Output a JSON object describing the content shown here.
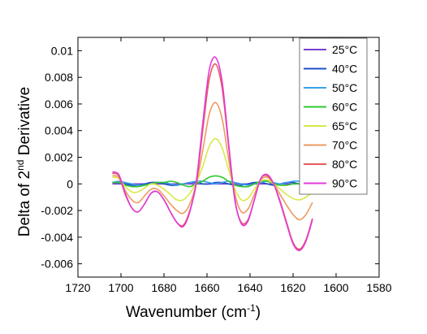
{
  "chart_data": {
    "type": "line",
    "title": "",
    "xlabel_main": "Wavenumber (cm",
    "xlabel_sup": "-1",
    "xlabel_end": ")",
    "ylabel_main": "Delta of 2",
    "ylabel_sup": "nd",
    "ylabel_end": " Derivative",
    "xlim": [
      1720,
      1580
    ],
    "ylim": [
      -0.007,
      0.011
    ],
    "x_ticks": [
      1720,
      1700,
      1680,
      1660,
      1640,
      1620,
      1600,
      1580
    ],
    "y_ticks": [
      0.01,
      0.008,
      0.006,
      0.004,
      0.002,
      0,
      -0.002,
      -0.004,
      -0.006
    ],
    "y_tick_labels": [
      "0.01",
      "0.008",
      "0.006",
      "0.004",
      "0.002",
      "0",
      "-0.002",
      "-0.004",
      "-0.006"
    ],
    "legend_position": "top-right",
    "x": [
      1704,
      1701,
      1698,
      1695,
      1692,
      1689,
      1686,
      1683,
      1680,
      1677,
      1674,
      1671,
      1668,
      1665,
      1662,
      1659,
      1656,
      1653,
      1650,
      1647,
      1644,
      1641,
      1638,
      1635,
      1632,
      1629,
      1626,
      1623,
      1620,
      1617,
      1614,
      1611
    ],
    "series": [
      {
        "name": "25",
        "color": "#7b3fd0",
        "values": [
          0.0,
          0.0,
          0.0,
          0.0,
          0.0,
          0.0,
          0.0,
          0.0,
          0.0,
          0.0,
          0.0,
          0.0,
          0.0,
          0.0,
          0.0,
          0.0,
          0.0,
          0.0,
          0.0,
          0.0,
          0.0,
          0.0,
          0.0,
          0.0,
          0.0,
          0.0,
          0.0,
          0.0,
          0.0,
          0.0,
          0.0,
          0.0
        ]
      },
      {
        "name": "40",
        "color": "#1f4fc8",
        "values": [
          0.0001,
          0.0001,
          0.0,
          -0.0001,
          -0.0001,
          0.0,
          0.0001,
          0.0001,
          0.0,
          -0.0001,
          -0.0001,
          0.0,
          0.0001,
          0.0001,
          0.0,
          0.0,
          0.0001,
          0.0001,
          0.0,
          -0.0001,
          -0.0001,
          0.0,
          0.0001,
          0.0001,
          0.0,
          -0.0001,
          0.0,
          0.0001,
          0.0001,
          0.0,
          0.0,
          0.0
        ]
      },
      {
        "name": "50",
        "color": "#3aa0e8",
        "values": [
          0.0001,
          0.0002,
          0.0001,
          0.0,
          -0.0001,
          -0.0001,
          0.0,
          0.0001,
          0.0001,
          0.0,
          -0.0001,
          0.0,
          0.0001,
          0.0002,
          0.0002,
          0.0001,
          0.0,
          0.0001,
          0.0002,
          0.0001,
          0.0,
          -0.0001,
          0.0,
          0.0001,
          0.0002,
          0.0001,
          0.0,
          0.0001,
          0.0002,
          0.0002,
          0.0001,
          0.0
        ]
      },
      {
        "name": "60",
        "color": "#2fc82f",
        "values": [
          0.0001,
          0.0001,
          -0.0001,
          -0.0002,
          -0.0002,
          -0.0001,
          0.0,
          0.0001,
          0.0001,
          0.0002,
          0.0001,
          -0.0001,
          -0.0002,
          0.0,
          0.0002,
          0.0005,
          0.0006,
          0.0005,
          0.0002,
          -0.0001,
          -0.0002,
          -0.0002,
          0.0,
          0.0002,
          0.0002,
          0.0,
          -0.0001,
          -0.0001,
          0.0,
          0.0,
          0.0,
          0.0
        ]
      },
      {
        "name": "65",
        "color": "#d8e84a",
        "values": [
          0.0005,
          0.0004,
          -0.0002,
          -0.0006,
          -0.0006,
          -0.0003,
          0.0,
          -0.0001,
          -0.0004,
          -0.0008,
          -0.0012,
          -0.0012,
          -0.0007,
          0.0001,
          0.0013,
          0.0028,
          0.0034,
          0.0027,
          0.0011,
          -0.0004,
          -0.0012,
          -0.0011,
          -0.0004,
          0.0002,
          0.0003,
          0.0,
          -0.0004,
          -0.0008,
          -0.0011,
          -0.0012,
          -0.001,
          -0.0006
        ]
      },
      {
        "name": "70",
        "color": "#ee9a60",
        "values": [
          0.0006,
          0.0005,
          -0.0005,
          -0.0012,
          -0.0014,
          -0.0009,
          -0.0004,
          -0.0004,
          -0.0009,
          -0.0015,
          -0.002,
          -0.0022,
          -0.0015,
          0.0,
          0.0025,
          0.0052,
          0.0061,
          0.0049,
          0.0019,
          -0.0008,
          -0.0021,
          -0.0019,
          -0.0008,
          0.0003,
          0.0005,
          0.0,
          -0.0008,
          -0.0016,
          -0.0023,
          -0.0027,
          -0.0023,
          -0.0014
        ]
      },
      {
        "name": "80",
        "color": "#e95a5a",
        "values": [
          0.0008,
          0.0006,
          -0.0008,
          -0.0018,
          -0.0021,
          -0.0015,
          -0.0007,
          -0.0006,
          -0.0012,
          -0.0021,
          -0.0029,
          -0.0031,
          -0.002,
          0.0,
          0.004,
          0.0078,
          0.009,
          0.0072,
          0.0029,
          -0.0013,
          -0.0029,
          -0.0027,
          -0.0012,
          0.0004,
          0.0006,
          0.0,
          -0.0013,
          -0.0029,
          -0.0044,
          -0.0049,
          -0.0042,
          -0.0026
        ]
      },
      {
        "name": "90",
        "color": "#e03ad8",
        "values": [
          0.0009,
          0.0007,
          -0.0007,
          -0.0018,
          -0.0021,
          -0.0015,
          -0.0007,
          -0.0006,
          -0.0012,
          -0.0021,
          -0.0029,
          -0.0032,
          -0.0021,
          0.0002,
          0.0045,
          0.0085,
          0.0095,
          0.0077,
          0.0031,
          -0.0012,
          -0.003,
          -0.0028,
          -0.0012,
          0.0004,
          0.0007,
          0.0,
          -0.0014,
          -0.003,
          -0.0045,
          -0.005,
          -0.0043,
          -0.0027
        ]
      }
    ],
    "legend_unit": "°C"
  }
}
